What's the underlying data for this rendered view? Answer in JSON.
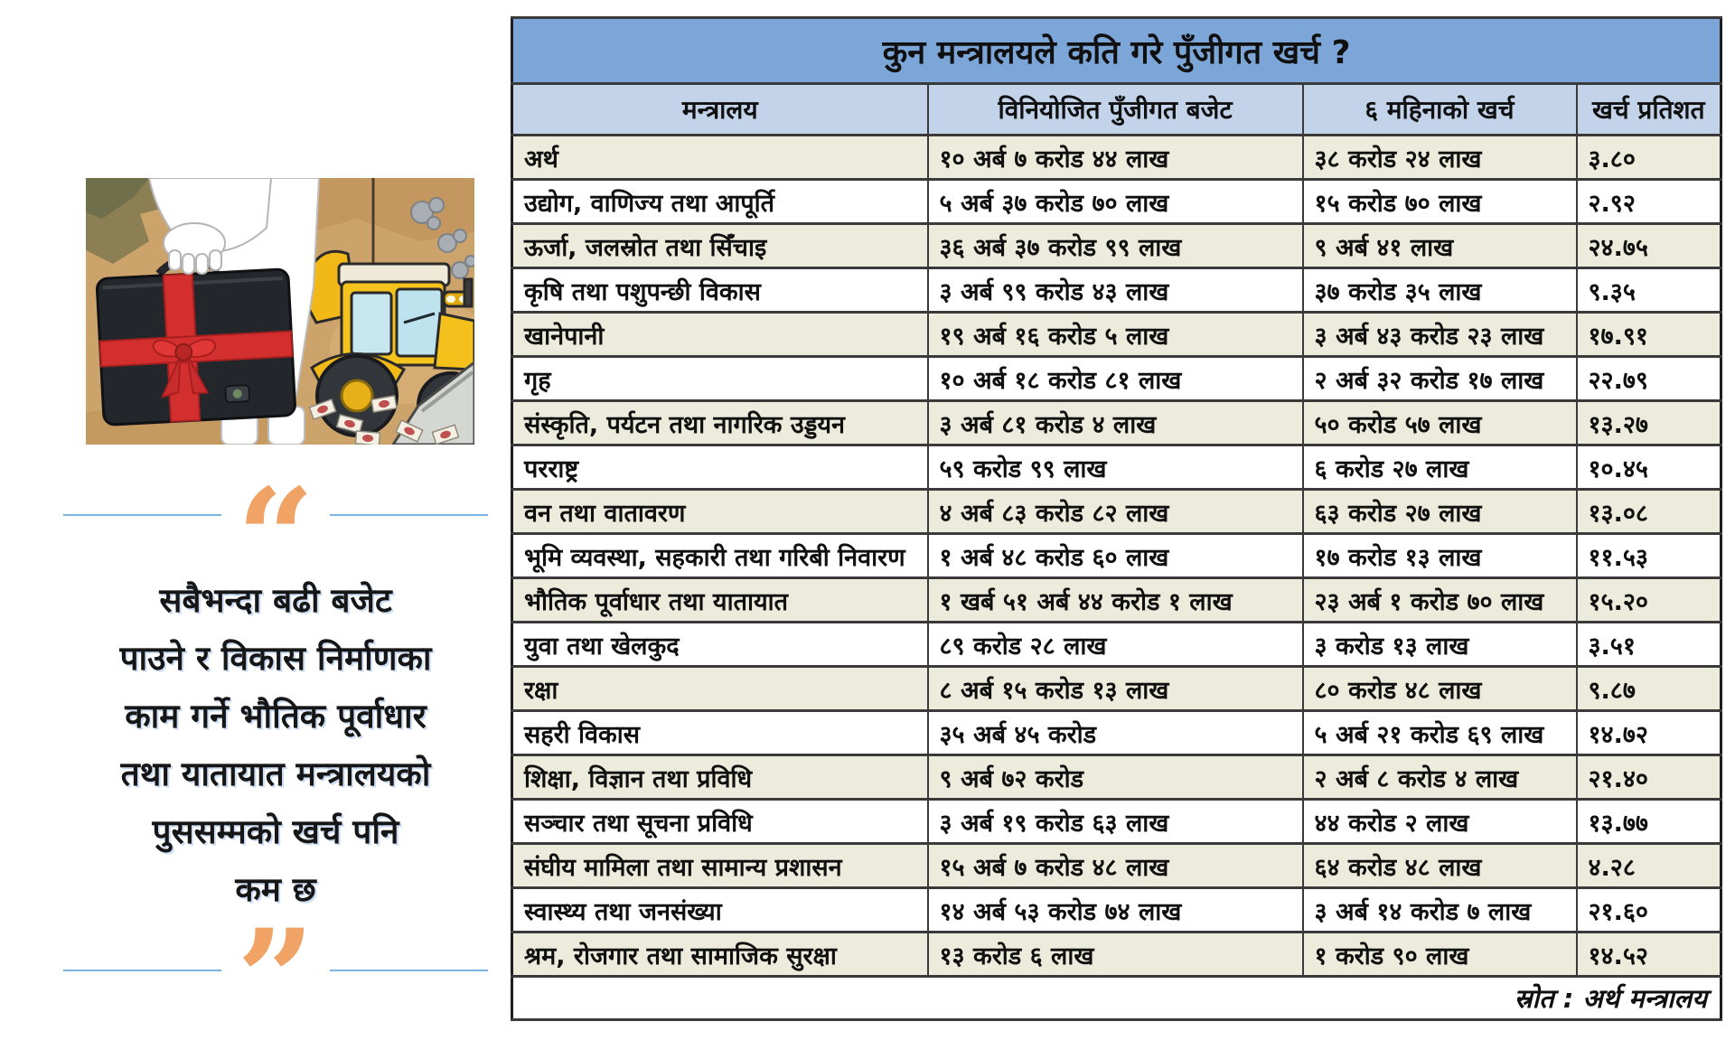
{
  "colors": {
    "title_bar": "#7ca6d8",
    "header_row": "#c3d3ea",
    "row_cream": "#edebdb",
    "row_white": "#ffffff",
    "border": "#3a3a3a",
    "quote_orange": "#f0a365",
    "quote_line_blue": "#7ab2e2",
    "ribbon_red": "#d22f2f",
    "excavator_yellow": "#f5c31d"
  },
  "illustration": {
    "alt": "briefcase-with-red-ribbon-and-excavator-cartoon"
  },
  "quote": {
    "open_mark": "“",
    "close_mark": "”",
    "lines": [
      "सबैभन्दा बढी बजेट",
      "पाउने र विकास निर्माणका",
      "काम गर्ने भौतिक पूर्वाधार",
      "तथा यातायात मन्त्रालयको",
      "पुससम्मको खर्च पनि",
      "कम छ"
    ]
  },
  "table": {
    "title": "कुन मन्त्रालयले कति गरे पुँजीगत खर्च ?",
    "columns": [
      "मन्त्रालय",
      "विनियोजित पुँजीगत बजेट",
      "६ महिनाको खर्च",
      "खर्च प्रतिशत"
    ],
    "rows": [
      {
        "ministry": "अर्थ",
        "budget": "१० अर्ब ७ करोड ४४ लाख",
        "expense": "३८ करोड २४ लाख",
        "percent": "३.८०"
      },
      {
        "ministry": "उद्योग, वाणिज्य तथा आपूर्ति",
        "budget": "५ अर्ब ३७ करोड ७० लाख",
        "expense": "१५ करोड ७० लाख",
        "percent": "२.९२"
      },
      {
        "ministry": "ऊर्जा, जलस्रोत तथा सिँचाइ",
        "budget": "३६ अर्ब ३७ करोड ९९ लाख",
        "expense": "९ अर्ब ४१ लाख",
        "percent": "२४.७५"
      },
      {
        "ministry": "कृषि तथा पशुपन्छी विकास",
        "budget": "३ अर्ब ९९ करोड ४३ लाख",
        "expense": "३७ करोड ३५ लाख",
        "percent": "९.३५"
      },
      {
        "ministry": "खानेपानी",
        "budget": "१९ अर्ब १६ करोड ५ लाख",
        "expense": "३ अर्ब ४३ करोड २३ लाख",
        "percent": "१७.९१"
      },
      {
        "ministry": "गृह",
        "budget": "१० अर्ब १८ करोड ८१ लाख",
        "expense": "२ अर्ब ३२ करोड १७ लाख",
        "percent": "२२.७९"
      },
      {
        "ministry": "संस्कृति, पर्यटन तथा नागरिक उड्डयन",
        "budget": "३ अर्ब ८१ करोड ४ लाख",
        "expense": "५० करोड ५७ लाख",
        "percent": "१३.२७"
      },
      {
        "ministry": "परराष्ट्र",
        "budget": "५९ करोड ९९ लाख",
        "expense": "६ करोड २७ लाख",
        "percent": "१०.४५"
      },
      {
        "ministry": "वन तथा वातावरण",
        "budget": "४ अर्ब ८३ करोड ८२ लाख",
        "expense": "६३ करोड २७ लाख",
        "percent": "१३.०८"
      },
      {
        "ministry": "भूमि व्यवस्था, सहकारी तथा गरिबी निवारण",
        "budget": "१ अर्ब ४८ करोड ६० लाख",
        "expense": "१७ करोड १३ लाख",
        "percent": "११.५३"
      },
      {
        "ministry": "भौतिक पूर्वाधार तथा यातायात",
        "budget": "१ खर्ब ५१ अर्ब ४४ करोड १ लाख",
        "expense": "२३ अर्ब १ करोड ७० लाख",
        "percent": "१५.२०"
      },
      {
        "ministry": "युवा तथा खेलकुद",
        "budget": "८९ करोड २८ लाख",
        "expense": "३ करोड १३ लाख",
        "percent": "३.५१"
      },
      {
        "ministry": "रक्षा",
        "budget": "८ अर्ब १५ करोड १३ लाख",
        "expense": "८० करोड ४८ लाख",
        "percent": "९.८७"
      },
      {
        "ministry": "सहरी विकास",
        "budget": "३५ अर्ब ४५ करोड",
        "expense": "५ अर्ब २१ करोड ६९ लाख",
        "percent": "१४.७२"
      },
      {
        "ministry": "शिक्षा, विज्ञान तथा प्रविधि",
        "budget": "९ अर्ब ७२ करोड",
        "expense": "२ अर्ब ८ करोड ४ लाख",
        "percent": "२१.४०"
      },
      {
        "ministry": "सञ्चार तथा सूचना प्रविधि",
        "budget": "३ अर्ब १९ करोड ६३ लाख",
        "expense": "४४ करोड २ लाख",
        "percent": "१३.७७"
      },
      {
        "ministry": "संघीय मामिला तथा सामान्य प्रशासन",
        "budget": "१५ अर्ब ७ करोड ४८ लाख",
        "expense": "६४ करोड ४८ लाख",
        "percent": "४.२८"
      },
      {
        "ministry": "स्वास्थ्य तथा जनसंख्या",
        "budget": "१४ अर्ब ५३ करोड ७४ लाख",
        "expense": "३ अर्ब १४ करोड ७ लाख",
        "percent": "२१.६०"
      },
      {
        "ministry": "श्रम, रोजगार तथा सामाजिक सुरक्षा",
        "budget": "१३ करोड ६ लाख",
        "expense": "१ करोड ९० लाख",
        "percent": "१४.५२"
      }
    ],
    "source": "स्रोत : अर्थ मन्त्रालय"
  },
  "chart_data": {
    "type": "table",
    "title": "कुन मन्त्रालयले कति गरे पुँजीगत खर्च ?",
    "columns": [
      "मन्त्रालय",
      "विनियोजित पुँजीगत बजेट",
      "६ महिनाको खर्च",
      "खर्च प्रतिशत"
    ],
    "rows": [
      [
        "अर्थ",
        "१० अर्ब ७ करोड ४४ लाख",
        "३८ करोड २४ लाख",
        "३.८०"
      ],
      [
        "उद्योग, वाणिज्य तथा आपूर्ति",
        "५ अर्ब ३७ करोड ७० लाख",
        "१५ करोड ७० लाख",
        "२.९२"
      ],
      [
        "ऊर्जा, जलस्रोत तथा सिँचाइ",
        "३६ अर्ब ३७ करोड ९९ लाख",
        "९ अर्ब ४१ लाख",
        "२४.७५"
      ],
      [
        "कृषि तथा पशुपन्छी विकास",
        "३ अर्ब ९९ करोड ४३ लाख",
        "३७ करोड ३५ लाख",
        "९.३५"
      ],
      [
        "खानेपानी",
        "१९ अर्ब १६ करोड ५ लाख",
        "३ अर्ब ४३ करोड २३ लाख",
        "१७.९१"
      ],
      [
        "गृह",
        "१० अर्ब १८ करोड ८१ लाख",
        "२ अर्ब ३२ करोड १७ लाख",
        "२२.७९"
      ],
      [
        "संस्कृति, पर्यटन तथा नागरिक उड्डयन",
        "३ अर्ब ८१ करोड ४ लाख",
        "५० करोड ५७ लाख",
        "१३.२७"
      ],
      [
        "परराष्ट्र",
        "५९ करोड ९९ लाख",
        "६ करोड २७ लाख",
        "१०.४५"
      ],
      [
        "वन तथा वातावरण",
        "४ अर्ब ८३ करोड ८२ लाख",
        "६३ करोड २७ लाख",
        "१३.०८"
      ],
      [
        "भूमि व्यवस्था, सहकारी तथा गरिबी निवारण",
        "१ अर्ब ४८ करोड ६० लाख",
        "१७ करोड १३ लाख",
        "११.५३"
      ],
      [
        "भौतिक पूर्वाधार तथा यातायात",
        "१ खर्ब ५१ अर्ब ४४ करोड १ लाख",
        "२३ अर्ब १ करोड ७० लाख",
        "१५.२०"
      ],
      [
        "युवा तथा खेलकुद",
        "८९ करोड २८ लाख",
        "३ करोड १३ लाख",
        "३.५१"
      ],
      [
        "रक्षा",
        "८ अर्ब १५ करोड १३ लाख",
        "८० करोड ४८ लाख",
        "९.८७"
      ],
      [
        "सहरी विकास",
        "३५ अर्ब ४५ करोड",
        "५ अर्ब २१ करोड ६९ लाख",
        "१४.७२"
      ],
      [
        "शिक्षा, विज्ञान तथा प्रविधि",
        "९ अर्ब ७२ करोड",
        "२ अर्ब ८ करोड ४ लाख",
        "२१.४०"
      ],
      [
        "सञ्चार तथा सूचना प्रविधि",
        "३ अर्ब १९ करोड ६३ लाख",
        "४४ करोड २ लाख",
        "१३.७७"
      ],
      [
        "संघीय मामिला तथा सामान्य प्रशासन",
        "१५ अर्ब ७ करोड ४८ लाख",
        "६४ करोड ४८ लाख",
        "४.२८"
      ],
      [
        "स्वास्थ्य तथा जनसंख्या",
        "१४ अर्ब ५३ करोड ७४ लाख",
        "३ अर्ब १४ करोड ७ लाख",
        "२१.६०"
      ],
      [
        "श्रम, रोजगार तथा सामाजिक सुरक्षा",
        "१३ करोड ६ लाख",
        "१ करोड ९० लाख",
        "१४.५२"
      ]
    ],
    "source": "स्रोत : अर्थ मन्त्रालय"
  }
}
